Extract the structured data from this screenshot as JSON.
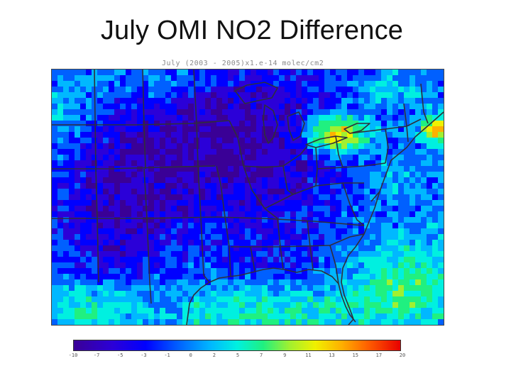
{
  "slide": {
    "title": "July OMI NO2 Difference"
  },
  "map": {
    "subtitle": "July (2003 - 2005)x1.e-14 molec/cm2",
    "colormap": [
      "#3a0096",
      "#2b00d8",
      "#0000ff",
      "#0060ff",
      "#00b8ff",
      "#00f0e0",
      "#20f080",
      "#a0f030",
      "#f0f000",
      "#ffb000",
      "#ff6000",
      "#e80000"
    ],
    "boundary_color": "#2f2f3a",
    "colorbar": {
      "min": -10,
      "max": 20,
      "tick_labels": [
        "-10",
        "-7",
        "-5",
        "-3",
        "-1",
        "0",
        "2",
        "5",
        "7",
        "9",
        "11",
        "13",
        "15",
        "17",
        "20"
      ]
    }
  }
}
